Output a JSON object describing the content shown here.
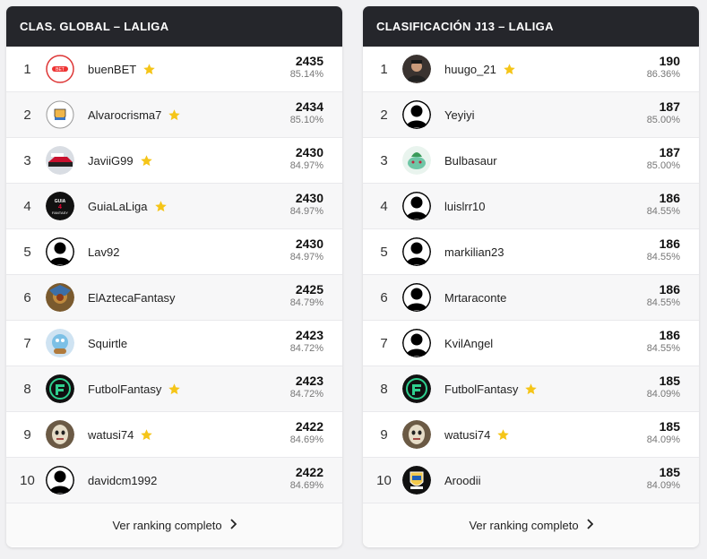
{
  "global": {
    "title": "CLAS. GLOBAL – LALIGA",
    "footer_label": "Ver ranking completo",
    "rows": [
      {
        "rank": "1",
        "name": "buenBET",
        "star": true,
        "pts": "2435",
        "pct": "85.14%",
        "avatar": "buenbet-logo"
      },
      {
        "rank": "2",
        "name": "Alvarocrisma7",
        "star": true,
        "pts": "2434",
        "pct": "85.10%",
        "avatar": "crest-logo"
      },
      {
        "rank": "3",
        "name": "JaviiG99",
        "star": true,
        "pts": "2430",
        "pct": "84.97%",
        "avatar": "car-photo"
      },
      {
        "rank": "4",
        "name": "GuiaLaLiga",
        "star": true,
        "pts": "2430",
        "pct": "84.97%",
        "avatar": "guia-logo"
      },
      {
        "rank": "5",
        "name": "Lav92",
        "star": false,
        "pts": "2430",
        "pct": "84.97%",
        "avatar": "default-user"
      },
      {
        "rank": "6",
        "name": "ElAztecaFantasy",
        "star": false,
        "pts": "2425",
        "pct": "84.79%",
        "avatar": "aztec-art"
      },
      {
        "rank": "7",
        "name": "Squirtle",
        "star": false,
        "pts": "2423",
        "pct": "84.72%",
        "avatar": "squirtle-art"
      },
      {
        "rank": "8",
        "name": "FutbolFantasy",
        "star": true,
        "pts": "2423",
        "pct": "84.72%",
        "avatar": "futbolfantasy-logo"
      },
      {
        "rank": "9",
        "name": "watusi74",
        "star": true,
        "pts": "2422",
        "pct": "84.69%",
        "avatar": "mask-photo"
      },
      {
        "rank": "10",
        "name": "davidcm1992",
        "star": false,
        "pts": "2422",
        "pct": "84.69%",
        "avatar": "default-user"
      }
    ]
  },
  "j13": {
    "title": "CLASIFICACIÓN J13 – LALIGA",
    "footer_label": "Ver ranking completo",
    "rows": [
      {
        "rank": "1",
        "name": "huugo_21",
        "star": true,
        "pts": "190",
        "pct": "86.36%",
        "avatar": "person-photo"
      },
      {
        "rank": "2",
        "name": "Yeyiyi",
        "star": false,
        "pts": "187",
        "pct": "85.00%",
        "avatar": "default-user"
      },
      {
        "rank": "3",
        "name": "Bulbasaur",
        "star": false,
        "pts": "187",
        "pct": "85.00%",
        "avatar": "bulbasaur-art"
      },
      {
        "rank": "4",
        "name": "luislrr10",
        "star": false,
        "pts": "186",
        "pct": "84.55%",
        "avatar": "default-user"
      },
      {
        "rank": "5",
        "name": "markilian23",
        "star": false,
        "pts": "186",
        "pct": "84.55%",
        "avatar": "default-user"
      },
      {
        "rank": "6",
        "name": "Mrtaraconte",
        "star": false,
        "pts": "186",
        "pct": "84.55%",
        "avatar": "default-user"
      },
      {
        "rank": "7",
        "name": "KvilAngel",
        "star": false,
        "pts": "186",
        "pct": "84.55%",
        "avatar": "default-user"
      },
      {
        "rank": "8",
        "name": "FutbolFantasy",
        "star": true,
        "pts": "185",
        "pct": "84.09%",
        "avatar": "futbolfantasy-logo"
      },
      {
        "rank": "9",
        "name": "watusi74",
        "star": true,
        "pts": "185",
        "pct": "84.09%",
        "avatar": "mask-photo"
      },
      {
        "rank": "10",
        "name": "Aroodii",
        "star": false,
        "pts": "185",
        "pct": "84.09%",
        "avatar": "crest-badge"
      }
    ]
  },
  "colors": {
    "header_bg": "#25262b",
    "star": "#f5c518",
    "page_bg": "#f1f1f3"
  }
}
